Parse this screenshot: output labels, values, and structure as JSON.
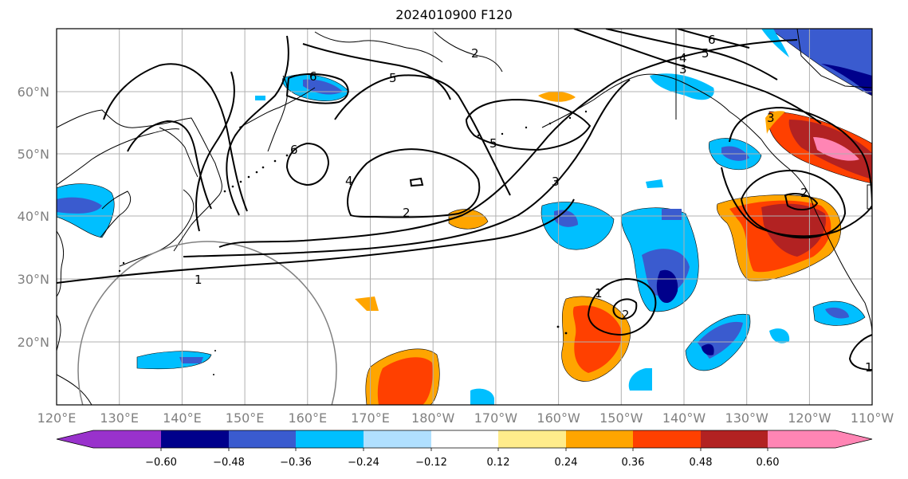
{
  "title": "2024010900 F120",
  "map": {
    "lon_labels": [
      "120°E",
      "130°E",
      "140°E",
      "150°E",
      "160°E",
      "170°E",
      "180°W",
      "170°W",
      "160°W",
      "150°W",
      "140°W",
      "130°W",
      "120°W",
      "110°W"
    ],
    "lat_labels": [
      "20°N",
      "30°N",
      "40°N",
      "50°N",
      "60°N"
    ],
    "contour_labels": [
      "6",
      "5",
      "4",
      "6",
      "2",
      "1",
      "5",
      "3",
      "3",
      "2",
      "1",
      "2",
      "2",
      "6",
      "5",
      "4",
      "3",
      "1"
    ]
  },
  "colorbar": {
    "ticks": [
      "−0.60",
      "−0.48",
      "−0.36",
      "−0.24",
      "−0.12",
      "0.12",
      "0.24",
      "0.36",
      "0.48",
      "0.60"
    ],
    "colors": [
      "#9932cc",
      "#00008b",
      "#3a5bcf",
      "#00bfff",
      "#b0e0ff",
      "#ffffff",
      "#ffec8b",
      "#ffa500",
      "#ff4000",
      "#b22222",
      "#ff85b4"
    ]
  }
}
